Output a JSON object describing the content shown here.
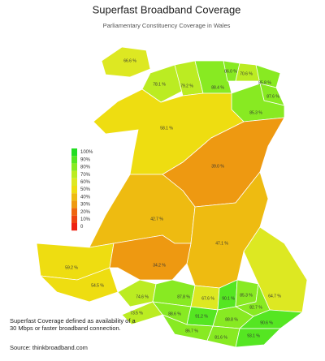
{
  "title": "Superfast Broadband Coverage",
  "subtitle": "Parliamentary Constituency Coverage in Wales",
  "legend": [
    {
      "value": 100,
      "label": "100%",
      "color": "#22dd22"
    },
    {
      "value": 90,
      "label": "90%",
      "color": "#55e622"
    },
    {
      "value": 80,
      "label": "80%",
      "color": "#88ea22"
    },
    {
      "value": 70,
      "label": "70%",
      "color": "#bbec22"
    },
    {
      "value": 60,
      "label": "60%",
      "color": "#dde822"
    },
    {
      "value": 50,
      "label": "50%",
      "color": "#eedd11"
    },
    {
      "value": 40,
      "label": "40%",
      "color": "#eebb11"
    },
    {
      "value": 30,
      "label": "30%",
      "color": "#ee9911"
    },
    {
      "value": 20,
      "label": "20%",
      "color": "#ee6611"
    },
    {
      "value": 10,
      "label": "10%",
      "color": "#ee4411"
    },
    {
      "value": 0,
      "label": "0",
      "color": "#ee2211"
    }
  ],
  "regions": [
    {
      "value": 66.6,
      "label": "66.6 %"
    },
    {
      "value": 78.1,
      "label": "78.1 %"
    },
    {
      "value": 79.2,
      "label": "79.2 %"
    },
    {
      "value": 88.4,
      "label": "88.4 %"
    },
    {
      "value": 86.0,
      "label": "86.0 %"
    },
    {
      "value": 70.6,
      "label": "70.6 %"
    },
    {
      "value": 85.8,
      "label": "85.8 %"
    },
    {
      "value": 87.6,
      "label": "87.6 %"
    },
    {
      "value": 85.3,
      "label": "85.3 %"
    },
    {
      "value": 58.1,
      "label": "58.1 %"
    },
    {
      "value": 39.0,
      "label": "39.0 %"
    },
    {
      "value": 42.7,
      "label": "42.7 %"
    },
    {
      "value": 47.1,
      "label": "47.1 %"
    },
    {
      "value": 59.2,
      "label": "59.2 %"
    },
    {
      "value": 54.5,
      "label": "54.5 %"
    },
    {
      "value": 34.2,
      "label": "34.2 %"
    },
    {
      "value": 64.7,
      "label": "64.7 %"
    },
    {
      "value": 74.6,
      "label": "74.6 %"
    },
    {
      "value": 73.5,
      "label": "73.5 %"
    },
    {
      "value": 87.8,
      "label": "87.8 %"
    },
    {
      "value": 67.6,
      "label": "67.6 %"
    },
    {
      "value": 90.1,
      "label": "90.1 %"
    },
    {
      "value": 85.3,
      "label": "85.3 %"
    },
    {
      "value": 82.7,
      "label": "82.7 %"
    },
    {
      "value": 88.6,
      "label": "88.6 %"
    },
    {
      "value": 91.2,
      "label": "91.2 %"
    },
    {
      "value": 88.8,
      "label": "88.8 %"
    },
    {
      "value": 90.6,
      "label": "90.6 %"
    },
    {
      "value": 86.7,
      "label": "86.7 %"
    },
    {
      "value": 81.6,
      "label": "81.6 %"
    },
    {
      "value": 93.1,
      "label": "93.1 %"
    }
  ],
  "note": "Superfast Coverage defined as availability of a 30 Mbps or faster broadband connection.",
  "source": "Source: thinkbroadband.com"
}
